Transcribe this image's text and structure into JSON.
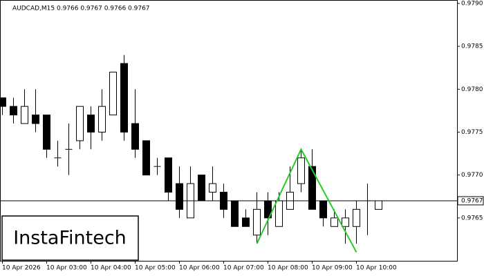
{
  "chart_data": {
    "type": "candlestick",
    "title": "AUDCAD,M15  0.9766 0.9767 0.9766 0.9767",
    "watermark": "InstaFintech",
    "categories": [
      "10 Apr 2026",
      null,
      null,
      null,
      "10 Apr 03:00",
      null,
      null,
      null,
      "10 Apr 04:00",
      null,
      null,
      null,
      "10 Apr 05:00",
      null,
      null,
      null,
      "10 Apr 06:00",
      null,
      null,
      null,
      "10 Apr 07:00",
      null,
      null,
      null,
      "10 Apr 08:00",
      null,
      null,
      null,
      "10 Apr 09:00",
      null,
      null,
      null,
      "10 Apr 10:00",
      null,
      null
    ],
    "open": [
      0.9779,
      0.9778,
      0.9776,
      0.9777,
      0.9777,
      0.9772,
      0.9773,
      0.9774,
      0.9777,
      0.9775,
      0.9777,
      0.9783,
      0.9776,
      0.9774,
      0.9771,
      0.9772,
      0.9769,
      0.9765,
      0.977,
      0.9768,
      0.9768,
      0.9767,
      0.9765,
      0.9763,
      0.9767,
      0.9764,
      0.9766,
      0.9769,
      0.9771,
      0.9767,
      0.9764,
      0.9764,
      0.9764,
      0.9767,
      0.9766
    ],
    "high": [
      0.9779,
      0.9779,
      0.978,
      0.978,
      0.9777,
      0.9774,
      0.9776,
      0.9778,
      0.9778,
      0.978,
      0.9782,
      0.9784,
      0.978,
      0.9774,
      0.9772,
      0.9772,
      0.9771,
      0.9771,
      0.977,
      0.9771,
      0.9769,
      0.9767,
      0.9766,
      0.9768,
      0.9768,
      0.9768,
      0.9771,
      0.9773,
      0.9773,
      0.9767,
      0.9766,
      0.9766,
      0.9767,
      0.9769,
      0.9767
    ],
    "low": [
      0.9777,
      0.9776,
      0.9776,
      0.9775,
      0.9772,
      0.9771,
      0.977,
      0.9773,
      0.9773,
      0.9774,
      0.9777,
      0.9774,
      0.9772,
      0.977,
      0.977,
      0.9767,
      0.9765,
      0.9765,
      0.9767,
      0.9767,
      0.9765,
      0.9764,
      0.9764,
      0.9762,
      0.9763,
      0.9764,
      0.9766,
      0.9768,
      0.9766,
      0.9764,
      0.9764,
      0.9762,
      0.9762,
      0.9763,
      0.9766
    ],
    "close": [
      0.9778,
      0.9777,
      0.9778,
      0.9776,
      0.9773,
      0.9772,
      0.9773,
      0.9778,
      0.9775,
      0.9778,
      0.9782,
      0.9775,
      0.9773,
      0.977,
      0.9771,
      0.9768,
      0.9766,
      0.9769,
      0.9767,
      0.9769,
      0.9766,
      0.9764,
      0.9764,
      0.9766,
      0.9765,
      0.9767,
      0.9768,
      0.9772,
      0.9766,
      0.9765,
      0.9765,
      0.9765,
      0.9766,
      0.9767,
      0.9767
    ],
    "ylim": [
      0.976,
      0.97904
    ],
    "yticks": [
      {
        "value": 0.9765,
        "label": "0.9765"
      },
      {
        "value": 0.977,
        "label": "0.9770"
      },
      {
        "value": 0.9775,
        "label": "0.9775"
      },
      {
        "value": 0.978,
        "label": "0.9780"
      },
      {
        "value": 0.9785,
        "label": "0.9785"
      },
      {
        "value": 0.979,
        "label": "0.9790"
      }
    ],
    "current_price": {
      "value": 0.9767,
      "label": "0.9767"
    },
    "pattern": {
      "color": "#22cc22",
      "index": [
        23,
        27,
        32
      ],
      "price": [
        0.9762,
        0.9773,
        0.9761
      ]
    }
  }
}
